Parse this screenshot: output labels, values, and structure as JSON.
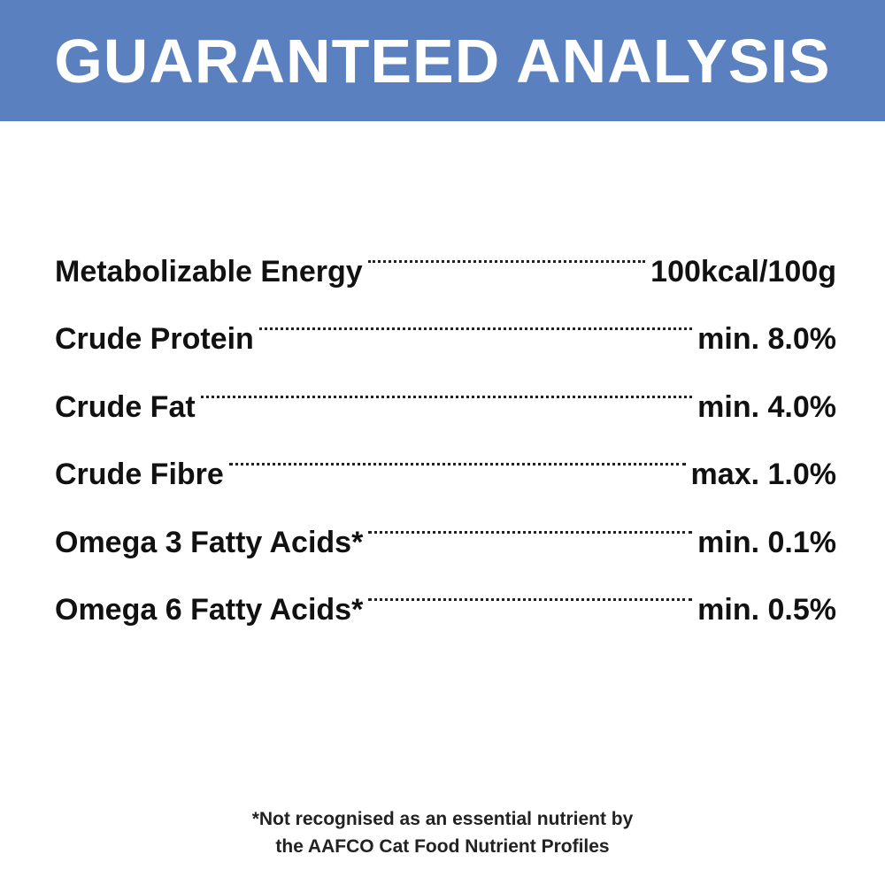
{
  "header": {
    "title": "GUARANTEED ANALYSIS"
  },
  "table": {
    "rows": [
      [
        "Metabolizable Energy",
        "100kcal/100g"
      ],
      [
        "Crude Protein",
        "min. 8.0%"
      ],
      [
        "Crude Fat",
        "min. 4.0%"
      ],
      [
        "Crude Fibre",
        "max. 1.0%"
      ],
      [
        "Omega 3 Fatty Acids*",
        "min. 0.1%"
      ],
      [
        "Omega 6 Fatty Acids*",
        "min. 0.5%"
      ]
    ]
  },
  "footnote": {
    "lines": [
      "*Not recognised as an essential nutrient by",
      "the AAFCO Cat Food Nutrient Profiles"
    ]
  }
}
